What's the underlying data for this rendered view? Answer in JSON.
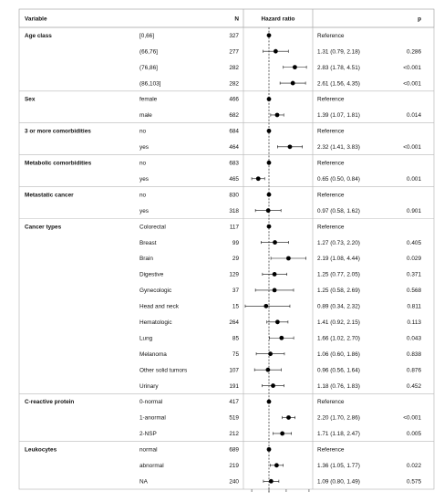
{
  "chart_data": {
    "type": "forest",
    "headers": {
      "variable": "Variable",
      "n": "N",
      "hr": "Hazard ratio",
      "p": "p"
    },
    "x_scale": "log",
    "reference_line": 1,
    "xlim": [
      0.4,
      5.2
    ],
    "rows": [
      {
        "group": "Age class",
        "level": "[0,66]",
        "n": "327",
        "hr": 1,
        "lo": 1,
        "hi": 1,
        "label": "Reference",
        "p": ""
      },
      {
        "group": "",
        "level": "(66,76]",
        "n": "277",
        "hr": 1.31,
        "lo": 0.79,
        "hi": 2.18,
        "label": "1.31 (0.79, 2.18)",
        "p": "0.286"
      },
      {
        "group": "",
        "level": "(76,86]",
        "n": "282",
        "hr": 2.83,
        "lo": 1.78,
        "hi": 4.51,
        "label": "2.83 (1.78, 4.51)",
        "p": "<0.001"
      },
      {
        "group": "",
        "level": "(86,103]",
        "n": "282",
        "hr": 2.61,
        "lo": 1.56,
        "hi": 4.35,
        "label": "2.61 (1.56, 4.35)",
        "p": "<0.001"
      },
      {
        "group": "Sex",
        "level": "female",
        "n": "466",
        "hr": 1,
        "lo": 1,
        "hi": 1,
        "label": "Reference",
        "p": ""
      },
      {
        "group": "",
        "level": "male",
        "n": "682",
        "hr": 1.39,
        "lo": 1.07,
        "hi": 1.81,
        "label": "1.39 (1.07, 1.81)",
        "p": "0.014"
      },
      {
        "group": "3 or more comorbidities",
        "level": "no",
        "n": "684",
        "hr": 1,
        "lo": 1,
        "hi": 1,
        "label": "Reference",
        "p": ""
      },
      {
        "group": "",
        "level": "yes",
        "n": "464",
        "hr": 2.32,
        "lo": 1.41,
        "hi": 3.83,
        "label": "2.32 (1.41, 3.83)",
        "p": "<0.001"
      },
      {
        "group": "Metabolic comorbidities",
        "level": "no",
        "n": "683",
        "hr": 1,
        "lo": 1,
        "hi": 1,
        "label": "Reference",
        "p": ""
      },
      {
        "group": "",
        "level": "yes",
        "n": "465",
        "hr": 0.65,
        "lo": 0.5,
        "hi": 0.84,
        "label": "0.65 (0.50, 0.84)",
        "p": "0.001"
      },
      {
        "group": "Metastatic cancer",
        "level": "no",
        "n": "830",
        "hr": 1,
        "lo": 1,
        "hi": 1,
        "label": "Reference",
        "p": ""
      },
      {
        "group": "",
        "level": "yes",
        "n": "318",
        "hr": 0.97,
        "lo": 0.58,
        "hi": 1.62,
        "label": "0.97 (0.58, 1.62)",
        "p": "0.901"
      },
      {
        "group": "Cancer types",
        "level": "Colorectal",
        "n": "117",
        "hr": 1,
        "lo": 1,
        "hi": 1,
        "label": "Reference",
        "p": ""
      },
      {
        "group": "",
        "level": "Breast",
        "n": "99",
        "hr": 1.27,
        "lo": 0.73,
        "hi": 2.2,
        "label": "1.27 (0.73, 2.20)",
        "p": "0.405"
      },
      {
        "group": "",
        "level": "Brain",
        "n": "29",
        "hr": 2.19,
        "lo": 1.08,
        "hi": 4.44,
        "label": "2.19 (1.08, 4.44)",
        "p": "0.029"
      },
      {
        "group": "",
        "level": "Digestive",
        "n": "129",
        "hr": 1.25,
        "lo": 0.77,
        "hi": 2.05,
        "label": "1.25 (0.77, 2.05)",
        "p": "0.371"
      },
      {
        "group": "",
        "level": "Gynecologic",
        "n": "37",
        "hr": 1.25,
        "lo": 0.58,
        "hi": 2.69,
        "label": "1.25 (0.58, 2.69)",
        "p": "0.568"
      },
      {
        "group": "",
        "level": "Head and neck",
        "n": "15",
        "hr": 0.89,
        "lo": 0.34,
        "hi": 2.32,
        "label": "0.89 (0.34, 2.32)",
        "p": "0.811"
      },
      {
        "group": "",
        "level": "Hematologic",
        "n": "264",
        "hr": 1.41,
        "lo": 0.92,
        "hi": 2.15,
        "label": "1.41 (0.92, 2.15)",
        "p": "0.113"
      },
      {
        "group": "",
        "level": "Lung",
        "n": "85",
        "hr": 1.66,
        "lo": 1.02,
        "hi": 2.7,
        "label": "1.66 (1.02, 2.70)",
        "p": "0.043"
      },
      {
        "group": "",
        "level": "Melanoma",
        "n": "75",
        "hr": 1.06,
        "lo": 0.6,
        "hi": 1.86,
        "label": "1.06 (0.60, 1.86)",
        "p": "0.838"
      },
      {
        "group": "",
        "level": "Other solid tumors",
        "n": "107",
        "hr": 0.96,
        "lo": 0.56,
        "hi": 1.64,
        "label": "0.96 (0.56, 1.64)",
        "p": "0.876"
      },
      {
        "group": "",
        "level": "Urinary",
        "n": "191",
        "hr": 1.18,
        "lo": 0.76,
        "hi": 1.83,
        "label": "1.18 (0.76, 1.83)",
        "p": "0.452"
      },
      {
        "group": "C-reactive protein",
        "level": "0-normal",
        "n": "417",
        "hr": 1,
        "lo": 1,
        "hi": 1,
        "label": "Reference",
        "p": ""
      },
      {
        "group": "",
        "level": "1-anormal",
        "n": "519",
        "hr": 2.2,
        "lo": 1.7,
        "hi": 2.86,
        "label": "2.20 (1.70, 2.86)",
        "p": "<0.001"
      },
      {
        "group": "",
        "level": "2-NSP",
        "n": "212",
        "hr": 1.71,
        "lo": 1.18,
        "hi": 2.47,
        "label": "1.71 (1.18, 2.47)",
        "p": "0.005"
      },
      {
        "group": "Leukocytes",
        "level": "normal",
        "n": "689",
        "hr": 1,
        "lo": 1,
        "hi": 1,
        "label": "Reference",
        "p": ""
      },
      {
        "group": "",
        "level": "abnormal",
        "n": "219",
        "hr": 1.36,
        "lo": 1.05,
        "hi": 1.77,
        "label": "1.36 (1.05, 1.77)",
        "p": "0.022"
      },
      {
        "group": "",
        "level": "NA",
        "n": "240",
        "hr": 1.09,
        "lo": 0.8,
        "hi": 1.49,
        "label": "1.09 (0.80, 1.49)",
        "p": "0.575"
      }
    ]
  }
}
